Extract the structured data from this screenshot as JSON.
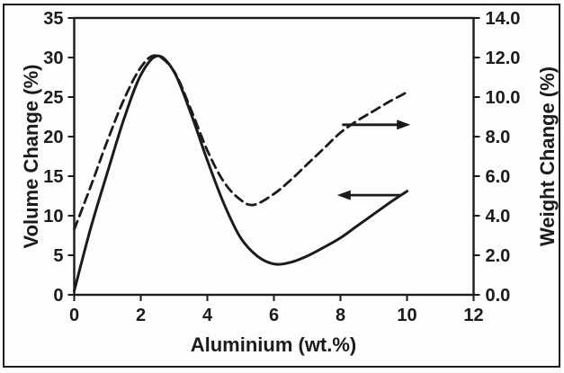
{
  "chart_data": {
    "type": "line",
    "title": "",
    "xlabel": "Aluminium (wt.%)",
    "grid": false,
    "legend": "none",
    "x_axis": {
      "min": 0,
      "max": 12,
      "tick_values": [
        0,
        2,
        4,
        6,
        8,
        10,
        12
      ],
      "tick_labels": [
        "0",
        "2",
        "4",
        "6",
        "8",
        "10",
        "12"
      ]
    },
    "y_left": {
      "label": "Volume Change (%)",
      "min": 0,
      "max": 35,
      "tick_values": [
        0,
        5,
        10,
        15,
        20,
        25,
        30,
        35
      ],
      "tick_labels": [
        "0",
        "5",
        "10",
        "15",
        "20",
        "25",
        "30",
        "35"
      ]
    },
    "y_right": {
      "label": "Weight Change (%)",
      "min": 0,
      "max": 14,
      "tick_values": [
        0,
        2,
        4,
        6,
        8,
        10,
        12,
        14
      ],
      "tick_labels": [
        "0.0",
        "2.0",
        "4.0",
        "6.0",
        "8.0",
        "10.0",
        "12.0",
        "14.0"
      ]
    },
    "series": [
      {
        "name": "Volume Change (%)",
        "axis": "left",
        "style": "solid",
        "x": [
          0,
          0.5,
          1,
          1.5,
          2,
          2.5,
          3,
          3.5,
          4,
          4.5,
          5,
          5.5,
          6,
          6.5,
          7,
          7.5,
          8,
          8.5,
          9,
          9.5,
          10
        ],
        "y": [
          0.5,
          8.5,
          15.5,
          22.3,
          27.8,
          30.2,
          28.2,
          23.0,
          17.0,
          11.5,
          7.2,
          4.9,
          3.9,
          4.1,
          4.9,
          6.0,
          7.2,
          8.7,
          10.2,
          11.7,
          13.1
        ]
      },
      {
        "name": "Weight Change (%)",
        "axis": "right",
        "style": "dashed",
        "x": [
          0,
          0.5,
          1,
          1.5,
          2,
          2.45,
          3,
          3.5,
          4,
          4.5,
          5,
          5.4,
          6,
          6.5,
          7,
          7.5,
          8,
          8.5,
          9,
          9.5,
          9.95
        ],
        "y": [
          3.3,
          5.5,
          7.8,
          9.9,
          11.5,
          12.1,
          11.3,
          9.4,
          7.3,
          5.7,
          4.8,
          4.55,
          5.1,
          5.8,
          6.6,
          7.4,
          8.2,
          8.8,
          9.3,
          9.8,
          10.2
        ]
      }
    ],
    "annotations": [
      {
        "type": "arrow",
        "direction": "right",
        "axis": "right",
        "x_from": 8.05,
        "x_to": 10.1,
        "y": 8.6
      },
      {
        "type": "arrow",
        "direction": "left",
        "axis": "left",
        "x_from": 9.8,
        "x_to": 7.9,
        "y": 12.6
      }
    ],
    "colors": {
      "line": "#1b1b1b",
      "background": "#fdfdfd",
      "border": "#1b1b1b"
    }
  }
}
